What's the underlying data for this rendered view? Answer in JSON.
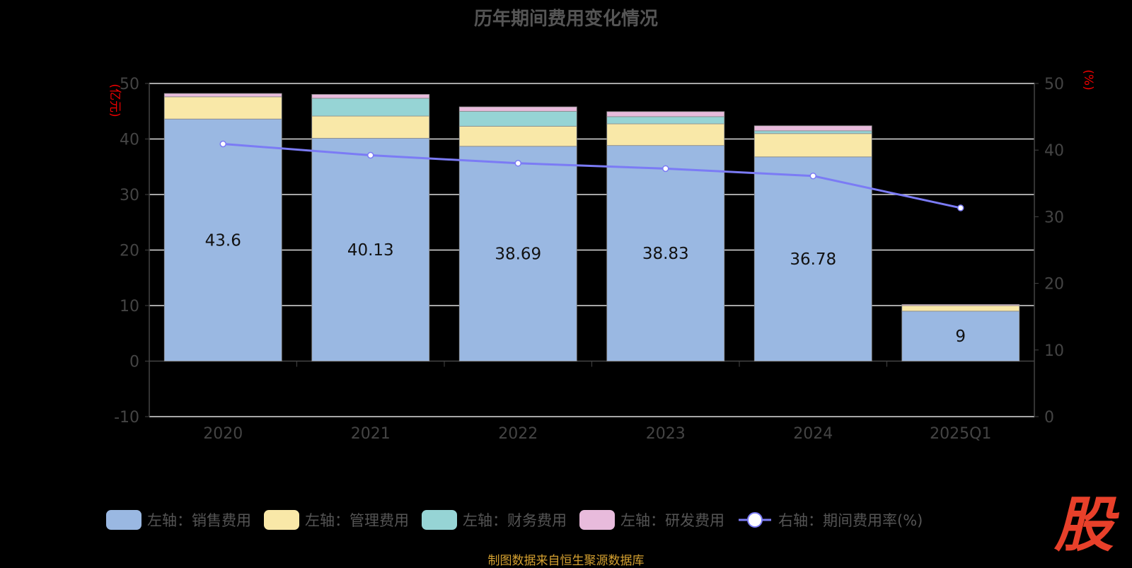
{
  "chart_data": {
    "type": "bar",
    "title": "历年期间费用变化情况",
    "categories": [
      "2020",
      "2021",
      "2022",
      "2023",
      "2024",
      "2025Q1"
    ],
    "left_axis": {
      "label": "(亿元)",
      "range": [
        -10,
        50
      ],
      "ticks": [
        -10,
        0,
        10,
        20,
        30,
        40,
        50
      ]
    },
    "right_axis": {
      "label": "(%)",
      "range": [
        0,
        50
      ],
      "ticks": [
        0,
        10,
        20,
        30,
        40,
        50
      ]
    },
    "grid": true,
    "legend_position": "bottom",
    "series": [
      {
        "name": "左轴：销售费用",
        "type": "bar",
        "color": "#9ab8e2",
        "values": [
          43.6,
          40.13,
          38.69,
          38.83,
          36.78,
          9
        ],
        "labels": [
          "43.6",
          "40.13",
          "38.69",
          "38.83",
          "36.78",
          "9"
        ]
      },
      {
        "name": "左轴：管理费用",
        "type": "bar",
        "color": "#f9e8a8",
        "values": [
          4.0,
          4.0,
          3.6,
          3.9,
          4.2,
          1.0
        ]
      },
      {
        "name": "左轴：财务费用",
        "type": "bar",
        "color": "#96d4d5",
        "values": [
          0.0,
          3.2,
          2.7,
          1.3,
          0.5,
          0.0
        ]
      },
      {
        "name": "左轴：研发费用",
        "type": "bar",
        "color": "#e8bbdc",
        "values": [
          0.6,
          0.7,
          0.8,
          0.9,
          0.9,
          0.2
        ]
      },
      {
        "name": "右轴：期间费用率(%)",
        "type": "line",
        "color": "#7b7bf5",
        "values": [
          40.5,
          38.8,
          37.6,
          36.8,
          35.7,
          30.9
        ]
      }
    ]
  },
  "footer": "制图数据来自恒生聚源数据库",
  "logo_text": "股"
}
